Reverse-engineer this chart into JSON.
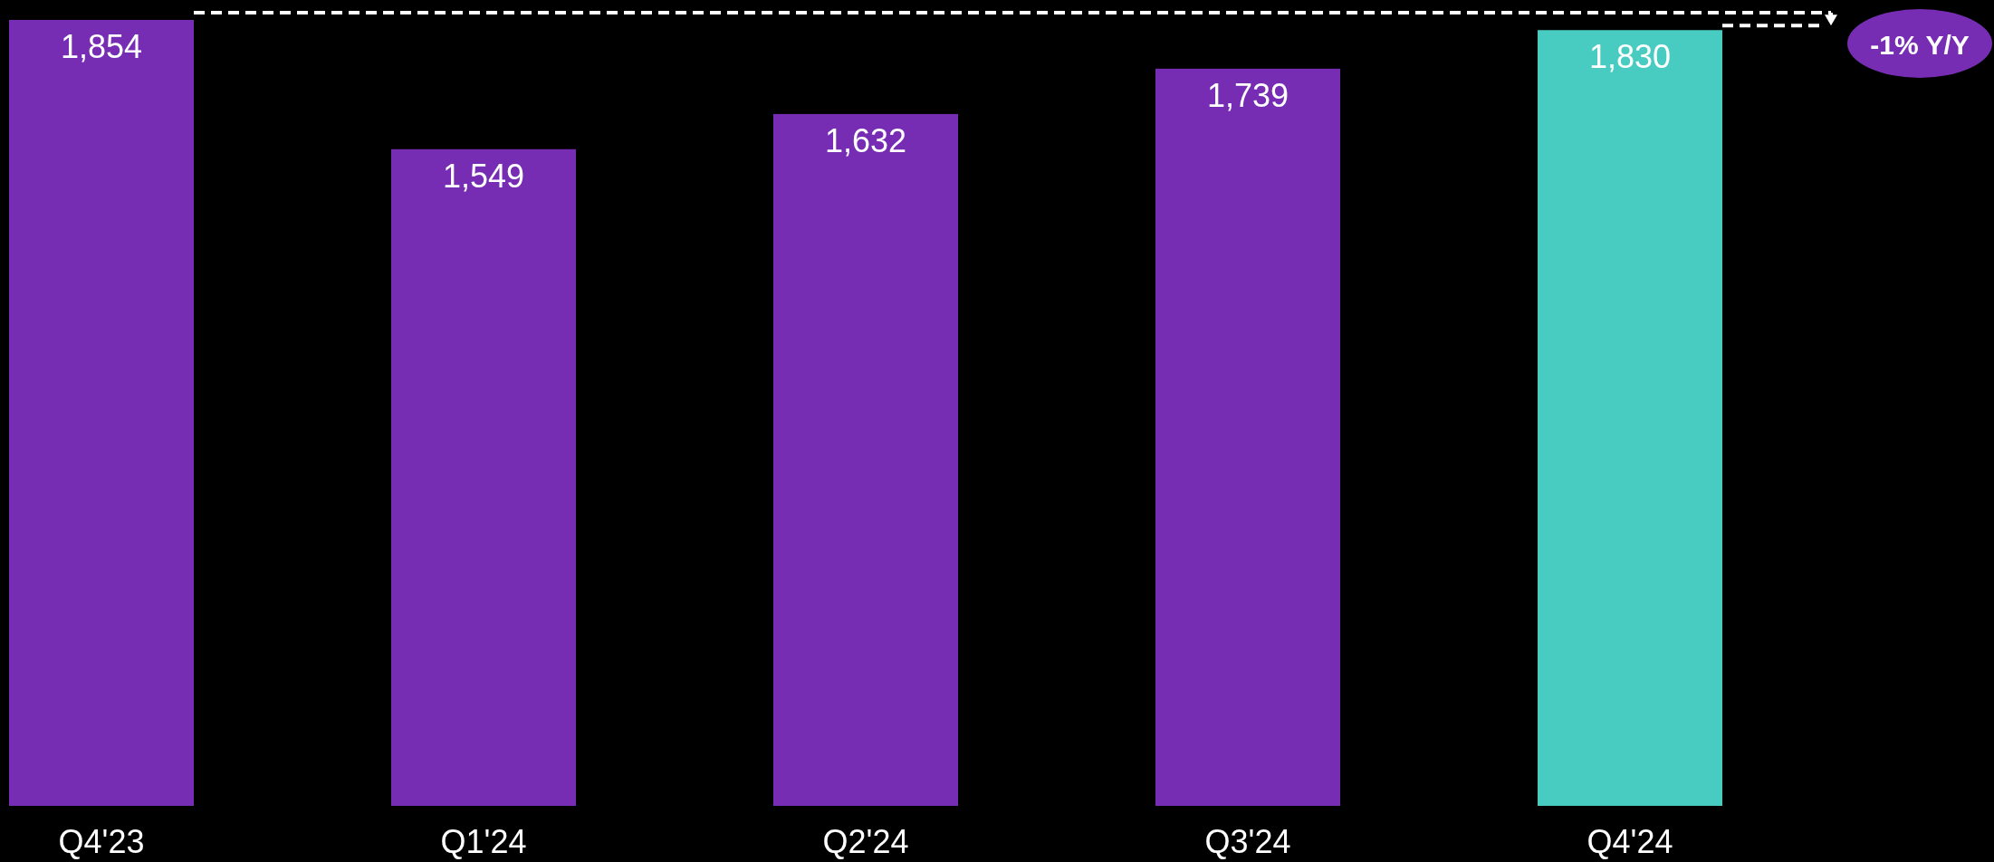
{
  "chart_data": {
    "type": "bar",
    "categories": [
      "Q4'23",
      "Q1'24",
      "Q2'24",
      "Q3'24",
      "Q4'24"
    ],
    "values": [
      1854,
      1549,
      1632,
      1739,
      1830
    ],
    "colors": [
      "#772db3",
      "#772db3",
      "#772db3",
      "#772db3",
      "#48cbc1"
    ],
    "value_labels": [
      "1,854",
      "1,549",
      "1,632",
      "1,739",
      "1,830"
    ],
    "ref_lines": [
      {
        "axis": "y",
        "value": 1871,
        "color": "#ffffff",
        "line_style": "dashed"
      }
    ],
    "annotations": [
      "-1% Y/Y"
    ]
  }
}
